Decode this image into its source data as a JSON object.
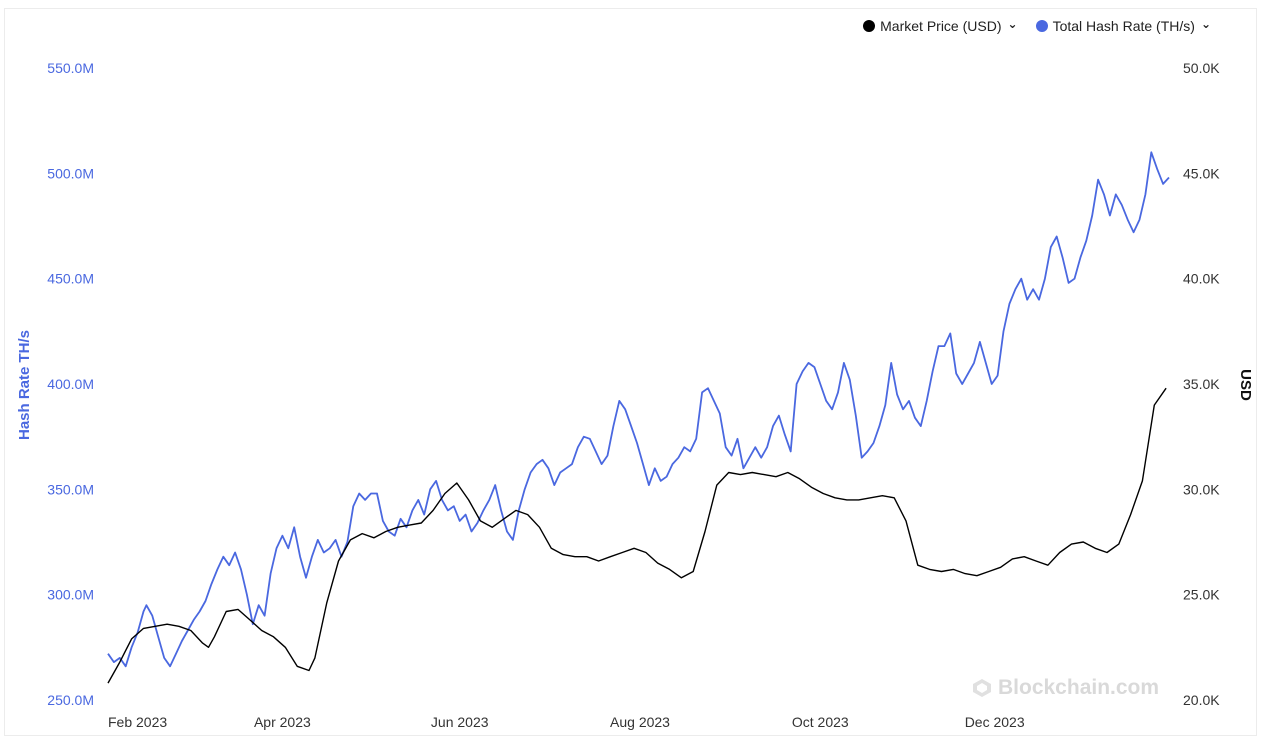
{
  "legend": [
    {
      "label": "Market Price (USD)",
      "color": "#000000"
    },
    {
      "label": "Total Hash Rate (TH/s)",
      "color": "#4a68e0"
    }
  ],
  "watermark": "Blockchain.com",
  "chart_data": {
    "type": "line",
    "left_axis": {
      "title": "Hash Rate TH/s",
      "ticks": [
        "250.0M",
        "300.0M",
        "350.0M",
        "400.0M",
        "450.0M",
        "500.0M",
        "550.0M"
      ],
      "range": [
        250,
        550
      ],
      "unit_suffix": "M"
    },
    "right_axis": {
      "title": "USD",
      "ticks": [
        "20.0K",
        "25.0K",
        "30.0K",
        "35.0K",
        "40.0K",
        "45.0K",
        "50.0K"
      ],
      "range": [
        20,
        50
      ],
      "unit_suffix": "K"
    },
    "x_axis": {
      "ticks": [
        "Feb 2023",
        "Apr 2023",
        "Jun 2023",
        "Aug 2023",
        "Oct 2023",
        "Dec 2023"
      ],
      "range_days": [
        0,
        360
      ]
    },
    "grid": false,
    "legend_position": "top-right",
    "series": [
      {
        "name": "Total Hash Rate (TH/s)",
        "axis": "left",
        "color": "#4a68e0",
        "points": [
          [
            0,
            272
          ],
          [
            2,
            268
          ],
          [
            4,
            270
          ],
          [
            6,
            266
          ],
          [
            8,
            275
          ],
          [
            10,
            282
          ],
          [
            12,
            292
          ],
          [
            13,
            295
          ],
          [
            15,
            290
          ],
          [
            17,
            280
          ],
          [
            19,
            270
          ],
          [
            21,
            266
          ],
          [
            23,
            272
          ],
          [
            25,
            278
          ],
          [
            27,
            283
          ],
          [
            29,
            288
          ],
          [
            31,
            292
          ],
          [
            33,
            297
          ],
          [
            35,
            305
          ],
          [
            37,
            312
          ],
          [
            39,
            318
          ],
          [
            41,
            314
          ],
          [
            43,
            320
          ],
          [
            45,
            312
          ],
          [
            47,
            300
          ],
          [
            49,
            286
          ],
          [
            51,
            295
          ],
          [
            53,
            290
          ],
          [
            55,
            310
          ],
          [
            57,
            322
          ],
          [
            59,
            328
          ],
          [
            61,
            322
          ],
          [
            63,
            332
          ],
          [
            65,
            318
          ],
          [
            67,
            308
          ],
          [
            69,
            318
          ],
          [
            71,
            326
          ],
          [
            73,
            320
          ],
          [
            75,
            322
          ],
          [
            77,
            326
          ],
          [
            79,
            318
          ],
          [
            81,
            325
          ],
          [
            83,
            342
          ],
          [
            85,
            348
          ],
          [
            87,
            345
          ],
          [
            89,
            348
          ],
          [
            91,
            348
          ],
          [
            93,
            335
          ],
          [
            95,
            330
          ],
          [
            97,
            328
          ],
          [
            99,
            336
          ],
          [
            101,
            332
          ],
          [
            103,
            340
          ],
          [
            105,
            345
          ],
          [
            107,
            338
          ],
          [
            109,
            350
          ],
          [
            111,
            354
          ],
          [
            113,
            345
          ],
          [
            115,
            340
          ],
          [
            117,
            342
          ],
          [
            119,
            335
          ],
          [
            121,
            338
          ],
          [
            123,
            330
          ],
          [
            125,
            334
          ],
          [
            127,
            340
          ],
          [
            129,
            345
          ],
          [
            131,
            352
          ],
          [
            133,
            340
          ],
          [
            135,
            330
          ],
          [
            137,
            326
          ],
          [
            139,
            340
          ],
          [
            141,
            350
          ],
          [
            143,
            358
          ],
          [
            145,
            362
          ],
          [
            147,
            364
          ],
          [
            149,
            360
          ],
          [
            151,
            352
          ],
          [
            153,
            358
          ],
          [
            155,
            360
          ],
          [
            157,
            362
          ],
          [
            159,
            370
          ],
          [
            161,
            375
          ],
          [
            163,
            374
          ],
          [
            165,
            368
          ],
          [
            167,
            362
          ],
          [
            169,
            366
          ],
          [
            171,
            380
          ],
          [
            173,
            392
          ],
          [
            175,
            388
          ],
          [
            177,
            380
          ],
          [
            179,
            372
          ],
          [
            181,
            362
          ],
          [
            183,
            352
          ],
          [
            185,
            360
          ],
          [
            187,
            354
          ],
          [
            189,
            356
          ],
          [
            191,
            362
          ],
          [
            193,
            365
          ],
          [
            195,
            370
          ],
          [
            197,
            368
          ],
          [
            199,
            374
          ],
          [
            201,
            396
          ],
          [
            203,
            398
          ],
          [
            205,
            392
          ],
          [
            207,
            386
          ],
          [
            209,
            370
          ],
          [
            211,
            366
          ],
          [
            213,
            374
          ],
          [
            215,
            360
          ],
          [
            217,
            365
          ],
          [
            219,
            370
          ],
          [
            221,
            365
          ],
          [
            223,
            370
          ],
          [
            225,
            380
          ],
          [
            227,
            385
          ],
          [
            229,
            376
          ],
          [
            231,
            368
          ],
          [
            233,
            400
          ],
          [
            235,
            406
          ],
          [
            237,
            410
          ],
          [
            239,
            408
          ],
          [
            241,
            400
          ],
          [
            243,
            392
          ],
          [
            245,
            388
          ],
          [
            247,
            396
          ],
          [
            249,
            410
          ],
          [
            251,
            402
          ],
          [
            253,
            385
          ],
          [
            255,
            365
          ],
          [
            257,
            368
          ],
          [
            259,
            372
          ],
          [
            261,
            380
          ],
          [
            263,
            390
          ],
          [
            265,
            410
          ],
          [
            267,
            395
          ],
          [
            269,
            388
          ],
          [
            271,
            392
          ],
          [
            273,
            384
          ],
          [
            275,
            380
          ],
          [
            277,
            392
          ],
          [
            279,
            406
          ],
          [
            281,
            418
          ],
          [
            283,
            418
          ],
          [
            285,
            424
          ],
          [
            287,
            405
          ],
          [
            289,
            400
          ],
          [
            291,
            405
          ],
          [
            293,
            410
          ],
          [
            295,
            420
          ],
          [
            297,
            410
          ],
          [
            299,
            400
          ],
          [
            301,
            404
          ],
          [
            303,
            425
          ],
          [
            305,
            438
          ],
          [
            307,
            445
          ],
          [
            309,
            450
          ],
          [
            311,
            440
          ],
          [
            313,
            445
          ],
          [
            315,
            440
          ],
          [
            317,
            450
          ],
          [
            319,
            465
          ],
          [
            321,
            470
          ],
          [
            323,
            460
          ],
          [
            325,
            448
          ],
          [
            327,
            450
          ],
          [
            329,
            460
          ],
          [
            331,
            468
          ],
          [
            333,
            480
          ],
          [
            335,
            497
          ],
          [
            337,
            490
          ],
          [
            339,
            480
          ],
          [
            341,
            490
          ],
          [
            343,
            485
          ],
          [
            345,
            478
          ],
          [
            347,
            472
          ],
          [
            349,
            478
          ],
          [
            351,
            490
          ],
          [
            353,
            510
          ],
          [
            355,
            502
          ],
          [
            357,
            495
          ],
          [
            359,
            498
          ]
        ]
      },
      {
        "name": "Market Price (USD)",
        "axis": "right",
        "color": "#000000",
        "points": [
          [
            0,
            20.8
          ],
          [
            4,
            21.8
          ],
          [
            8,
            22.9
          ],
          [
            12,
            23.4
          ],
          [
            16,
            23.5
          ],
          [
            20,
            23.6
          ],
          [
            24,
            23.5
          ],
          [
            28,
            23.3
          ],
          [
            32,
            22.7
          ],
          [
            34,
            22.5
          ],
          [
            36,
            23.0
          ],
          [
            40,
            24.2
          ],
          [
            44,
            24.3
          ],
          [
            48,
            23.8
          ],
          [
            52,
            23.3
          ],
          [
            56,
            23.0
          ],
          [
            60,
            22.5
          ],
          [
            64,
            21.6
          ],
          [
            68,
            21.4
          ],
          [
            70,
            22.0
          ],
          [
            74,
            24.6
          ],
          [
            78,
            26.6
          ],
          [
            82,
            27.6
          ],
          [
            86,
            27.9
          ],
          [
            90,
            27.7
          ],
          [
            94,
            28.0
          ],
          [
            98,
            28.2
          ],
          [
            102,
            28.3
          ],
          [
            106,
            28.4
          ],
          [
            110,
            29.0
          ],
          [
            114,
            29.8
          ],
          [
            118,
            30.3
          ],
          [
            122,
            29.5
          ],
          [
            126,
            28.5
          ],
          [
            130,
            28.2
          ],
          [
            134,
            28.6
          ],
          [
            138,
            29.0
          ],
          [
            142,
            28.8
          ],
          [
            146,
            28.2
          ],
          [
            150,
            27.2
          ],
          [
            154,
            26.9
          ],
          [
            158,
            26.8
          ],
          [
            162,
            26.8
          ],
          [
            166,
            26.6
          ],
          [
            170,
            26.8
          ],
          [
            174,
            27.0
          ],
          [
            178,
            27.2
          ],
          [
            182,
            27.0
          ],
          [
            186,
            26.5
          ],
          [
            190,
            26.2
          ],
          [
            194,
            25.8
          ],
          [
            198,
            26.1
          ],
          [
            202,
            28.0
          ],
          [
            206,
            30.2
          ],
          [
            210,
            30.8
          ],
          [
            214,
            30.7
          ],
          [
            218,
            30.8
          ],
          [
            222,
            30.7
          ],
          [
            226,
            30.6
          ],
          [
            230,
            30.8
          ],
          [
            234,
            30.5
          ],
          [
            238,
            30.1
          ],
          [
            242,
            29.8
          ],
          [
            246,
            29.6
          ],
          [
            250,
            29.5
          ],
          [
            254,
            29.5
          ],
          [
            258,
            29.6
          ],
          [
            262,
            29.7
          ],
          [
            266,
            29.6
          ],
          [
            270,
            28.5
          ],
          [
            274,
            26.4
          ],
          [
            278,
            26.2
          ],
          [
            282,
            26.1
          ],
          [
            286,
            26.2
          ],
          [
            290,
            26.0
          ],
          [
            294,
            25.9
          ],
          [
            298,
            26.1
          ],
          [
            302,
            26.3
          ],
          [
            306,
            26.7
          ],
          [
            310,
            26.8
          ],
          [
            314,
            26.6
          ],
          [
            318,
            26.4
          ],
          [
            322,
            27.0
          ],
          [
            326,
            27.4
          ],
          [
            330,
            27.5
          ],
          [
            334,
            27.2
          ],
          [
            338,
            27.0
          ],
          [
            342,
            27.4
          ],
          [
            346,
            28.8
          ],
          [
            350,
            30.4
          ],
          [
            354,
            34.0
          ],
          [
            358,
            34.8
          ]
        ]
      }
    ]
  }
}
